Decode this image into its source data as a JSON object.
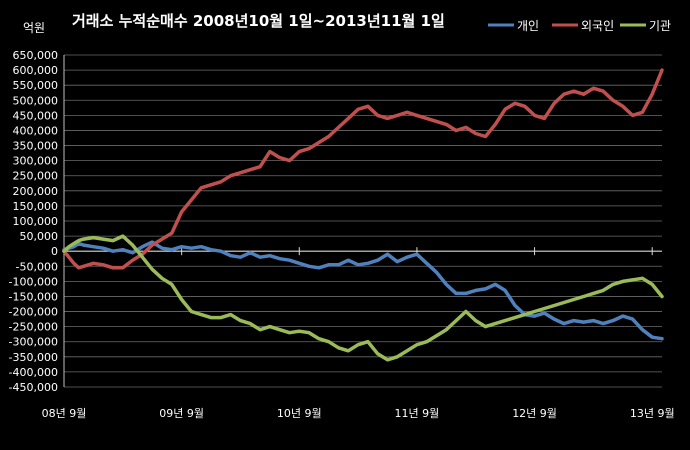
{
  "chart_data": {
    "type": "line",
    "title": "거래소 누적순매수 2008년10월 1일~2013년11월 1일",
    "ylabel": "억원",
    "xlabel": "",
    "ylim": [
      -450000,
      650000
    ],
    "yticks": [
      650000,
      600000,
      550000,
      500000,
      450000,
      400000,
      350000,
      300000,
      250000,
      200000,
      150000,
      100000,
      50000,
      0,
      -50000,
      -100000,
      -150000,
      -200000,
      -250000,
      -300000,
      -350000,
      -400000,
      -450000
    ],
    "ytick_labels": [
      "650,000",
      "600,000",
      "550,000",
      "500,000",
      "450,000",
      "400,000",
      "350,000",
      "300,000",
      "250,000",
      "200,000",
      "150,000",
      "100,000",
      "50,000",
      "0",
      "-50,000",
      "-100,000",
      "-150,000",
      "-200,000",
      "-250,000",
      "-300,000",
      "-350,000",
      "-400,000",
      "-450,000"
    ],
    "xlim": [
      0,
      61
    ],
    "x_tick_positions": [
      0,
      12,
      24,
      36,
      48,
      60
    ],
    "x_tick_labels": [
      "08년 9월",
      "09년 9월",
      "10년 9월",
      "11년 9월",
      "12년 9월",
      "13년 9월"
    ],
    "grid": true,
    "legend_position": "top-right",
    "series": [
      {
        "name": "개인",
        "color": "#4f81bd",
        "points": [
          [
            0,
            5000
          ],
          [
            0.5,
            10000
          ],
          [
            1,
            15000
          ],
          [
            1.5,
            25000
          ],
          [
            2,
            20000
          ],
          [
            3,
            15000
          ],
          [
            4,
            10000
          ],
          [
            5,
            0
          ],
          [
            6,
            5000
          ],
          [
            7,
            -5000
          ],
          [
            8,
            15000
          ],
          [
            9,
            30000
          ],
          [
            10,
            10000
          ],
          [
            11,
            5000
          ],
          [
            12,
            15000
          ],
          [
            13,
            10000
          ],
          [
            14,
            15000
          ],
          [
            15,
            5000
          ],
          [
            16,
            0
          ],
          [
            17,
            -15000
          ],
          [
            18,
            -20000
          ],
          [
            19,
            -5000
          ],
          [
            20,
            -20000
          ],
          [
            21,
            -15000
          ],
          [
            22,
            -25000
          ],
          [
            23,
            -30000
          ],
          [
            24,
            -40000
          ],
          [
            25,
            -50000
          ],
          [
            26,
            -55000
          ],
          [
            27,
            -45000
          ],
          [
            28,
            -45000
          ],
          [
            29,
            -30000
          ],
          [
            30,
            -45000
          ],
          [
            31,
            -40000
          ],
          [
            32,
            -30000
          ],
          [
            33,
            -10000
          ],
          [
            34,
            -35000
          ],
          [
            35,
            -20000
          ],
          [
            36,
            -10000
          ],
          [
            37,
            -40000
          ],
          [
            38,
            -70000
          ],
          [
            39,
            -110000
          ],
          [
            40,
            -140000
          ],
          [
            41,
            -140000
          ],
          [
            42,
            -130000
          ],
          [
            43,
            -125000
          ],
          [
            44,
            -110000
          ],
          [
            45,
            -130000
          ],
          [
            46,
            -180000
          ],
          [
            47,
            -210000
          ],
          [
            48,
            -215000
          ],
          [
            49,
            -205000
          ],
          [
            50,
            -225000
          ],
          [
            51,
            -240000
          ],
          [
            52,
            -230000
          ],
          [
            53,
            -235000
          ],
          [
            54,
            -230000
          ],
          [
            55,
            -240000
          ],
          [
            56,
            -230000
          ],
          [
            57,
            -215000
          ],
          [
            58,
            -225000
          ],
          [
            59,
            -260000
          ],
          [
            60,
            -285000
          ],
          [
            61,
            -290000
          ]
        ]
      },
      {
        "name": "외국인",
        "color": "#c0504d",
        "points": [
          [
            0,
            0
          ],
          [
            0.5,
            -20000
          ],
          [
            1,
            -40000
          ],
          [
            1.5,
            -55000
          ],
          [
            2,
            -50000
          ],
          [
            3,
            -40000
          ],
          [
            4,
            -45000
          ],
          [
            5,
            -55000
          ],
          [
            6,
            -55000
          ],
          [
            7,
            -30000
          ],
          [
            8,
            -10000
          ],
          [
            9,
            20000
          ],
          [
            10,
            40000
          ],
          [
            11,
            60000
          ],
          [
            12,
            130000
          ],
          [
            13,
            170000
          ],
          [
            14,
            210000
          ],
          [
            15,
            220000
          ],
          [
            16,
            230000
          ],
          [
            17,
            250000
          ],
          [
            18,
            260000
          ],
          [
            19,
            270000
          ],
          [
            20,
            280000
          ],
          [
            21,
            330000
          ],
          [
            22,
            310000
          ],
          [
            23,
            300000
          ],
          [
            24,
            330000
          ],
          [
            25,
            340000
          ],
          [
            26,
            360000
          ],
          [
            27,
            380000
          ],
          [
            28,
            410000
          ],
          [
            29,
            440000
          ],
          [
            30,
            470000
          ],
          [
            31,
            480000
          ],
          [
            32,
            450000
          ],
          [
            33,
            440000
          ],
          [
            34,
            450000
          ],
          [
            35,
            460000
          ],
          [
            36,
            450000
          ],
          [
            37,
            440000
          ],
          [
            38,
            430000
          ],
          [
            39,
            420000
          ],
          [
            40,
            400000
          ],
          [
            41,
            410000
          ],
          [
            42,
            390000
          ],
          [
            43,
            380000
          ],
          [
            44,
            420000
          ],
          [
            45,
            470000
          ],
          [
            46,
            490000
          ],
          [
            47,
            480000
          ],
          [
            48,
            450000
          ],
          [
            49,
            440000
          ],
          [
            50,
            490000
          ],
          [
            51,
            520000
          ],
          [
            52,
            530000
          ],
          [
            53,
            520000
          ],
          [
            54,
            540000
          ],
          [
            55,
            530000
          ],
          [
            56,
            500000
          ],
          [
            57,
            480000
          ],
          [
            58,
            450000
          ],
          [
            59,
            460000
          ],
          [
            60,
            520000
          ],
          [
            61,
            600000
          ]
        ]
      },
      {
        "name": "기관",
        "color": "#9bbb59",
        "points": [
          [
            0,
            0
          ],
          [
            0.5,
            15000
          ],
          [
            1,
            25000
          ],
          [
            1.5,
            35000
          ],
          [
            2,
            40000
          ],
          [
            3,
            45000
          ],
          [
            4,
            40000
          ],
          [
            5,
            35000
          ],
          [
            6,
            50000
          ],
          [
            7,
            20000
          ],
          [
            8,
            -20000
          ],
          [
            9,
            -60000
          ],
          [
            10,
            -90000
          ],
          [
            11,
            -110000
          ],
          [
            12,
            -160000
          ],
          [
            13,
            -200000
          ],
          [
            14,
            -210000
          ],
          [
            15,
            -220000
          ],
          [
            16,
            -220000
          ],
          [
            17,
            -210000
          ],
          [
            18,
            -230000
          ],
          [
            19,
            -240000
          ],
          [
            20,
            -260000
          ],
          [
            21,
            -250000
          ],
          [
            22,
            -260000
          ],
          [
            23,
            -270000
          ],
          [
            24,
            -265000
          ],
          [
            25,
            -270000
          ],
          [
            26,
            -290000
          ],
          [
            27,
            -300000
          ],
          [
            28,
            -320000
          ],
          [
            29,
            -330000
          ],
          [
            30,
            -310000
          ],
          [
            31,
            -300000
          ],
          [
            32,
            -340000
          ],
          [
            33,
            -360000
          ],
          [
            34,
            -350000
          ],
          [
            35,
            -330000
          ],
          [
            36,
            -310000
          ],
          [
            37,
            -300000
          ],
          [
            38,
            -280000
          ],
          [
            39,
            -260000
          ],
          [
            40,
            -230000
          ],
          [
            41,
            -200000
          ],
          [
            42,
            -230000
          ],
          [
            43,
            -250000
          ],
          [
            44,
            -240000
          ],
          [
            45,
            -230000
          ],
          [
            46,
            -220000
          ],
          [
            47,
            -210000
          ],
          [
            48,
            -200000
          ],
          [
            49,
            -190000
          ],
          [
            50,
            -180000
          ],
          [
            51,
            -170000
          ],
          [
            52,
            -160000
          ],
          [
            53,
            -150000
          ],
          [
            54,
            -140000
          ],
          [
            55,
            -130000
          ],
          [
            56,
            -110000
          ],
          [
            57,
            -100000
          ],
          [
            58,
            -95000
          ],
          [
            59,
            -90000
          ],
          [
            60,
            -110000
          ],
          [
            61,
            -150000
          ]
        ]
      }
    ]
  }
}
